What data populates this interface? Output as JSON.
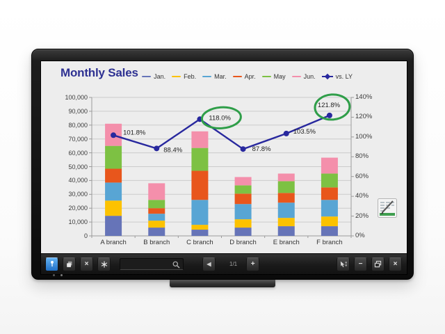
{
  "chart_data": {
    "type": "combo",
    "bar_style": "stacked",
    "title": "Monthly Sales",
    "title_color": "#2e3192",
    "categories": [
      "A branch",
      "B branch",
      "C branch",
      "D branch",
      "E branch",
      "F branch"
    ],
    "series": [
      {
        "name": "Jan.",
        "color": "#6674b8",
        "values": [
          14500,
          6000,
          4500,
          6000,
          7000,
          7000
        ]
      },
      {
        "name": "Feb.",
        "color": "#fcc200",
        "values": [
          11000,
          5000,
          3500,
          6000,
          6000,
          7000
        ]
      },
      {
        "name": "Mar.",
        "color": "#58a5d4",
        "values": [
          13000,
          5000,
          18000,
          11000,
          11000,
          12000
        ]
      },
      {
        "name": "Apr.",
        "color": "#e8561c",
        "values": [
          10000,
          4000,
          21000,
          7500,
          7000,
          9000
        ]
      },
      {
        "name": "May",
        "color": "#7dc143",
        "values": [
          16500,
          6000,
          16500,
          6000,
          8500,
          10000
        ]
      },
      {
        "name": "Jun.",
        "color": "#f48fab",
        "values": [
          16000,
          12000,
          12000,
          6000,
          5500,
          11500
        ]
      }
    ],
    "line_series": {
      "name": "vs. LY",
      "color": "#28289e",
      "axis": "right",
      "values": [
        101.8,
        88.4,
        118.0,
        87.8,
        103.5,
        121.8
      ],
      "labels": [
        "101.8%",
        "88.4%",
        "118.0%",
        "87.8%",
        "103.5%",
        "121.8%"
      ],
      "circled_points": [
        2,
        5
      ],
      "circle_color": "#2f9e49"
    },
    "left_axis": {
      "min": 0,
      "max": 100000,
      "step": 10000,
      "labels": [
        "100,000",
        "90,000",
        "80,000",
        "70,000",
        "60,000",
        "50,000",
        "40,000",
        "30,000",
        "20,000",
        "10,000",
        "0"
      ]
    },
    "right_axis": {
      "min": 0,
      "max": 140,
      "step": 20,
      "labels": [
        "140%",
        "120%",
        "100%",
        "80%",
        "60%",
        "40%",
        "20%",
        "0%"
      ]
    },
    "grid": true,
    "legend_position": "top"
  },
  "toolbar": {
    "page_indicator": "1/1",
    "prev_glyph": "◀",
    "add_glyph": "+",
    "x_tool_glyph": "×",
    "minimize_glyph": "−",
    "close_glyph": "×"
  }
}
